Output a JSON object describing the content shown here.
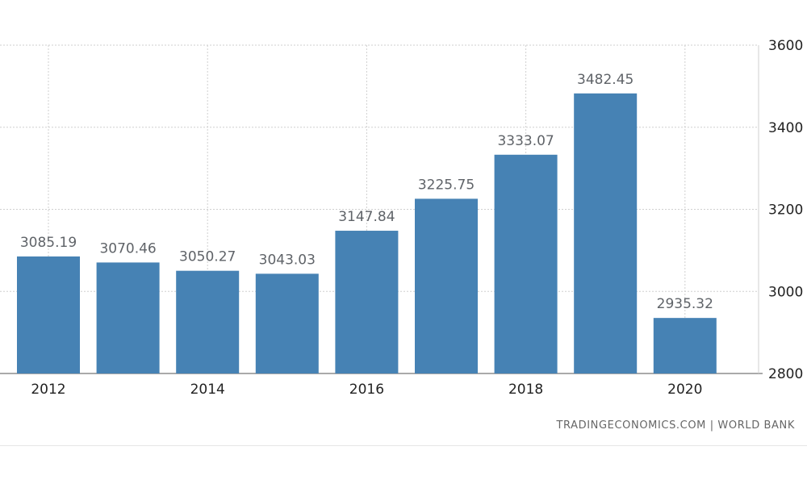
{
  "chart_data": {
    "type": "bar",
    "categories": [
      "2012",
      "2013",
      "2014",
      "2015",
      "2016",
      "2017",
      "2018",
      "2019",
      "2020"
    ],
    "values": [
      3085.19,
      3070.46,
      3050.27,
      3043.03,
      3147.84,
      3225.75,
      3333.07,
      3482.45,
      2935.32
    ],
    "value_labels": [
      "3085.19",
      "3070.46",
      "3050.27",
      "3043.03",
      "3147.84",
      "3225.75",
      "3333.07",
      "3482.45",
      "2935.32"
    ],
    "x_tick_labels": [
      "2012",
      "2014",
      "2016",
      "2018",
      "2020"
    ],
    "y_ticks": [
      2800,
      3000,
      3200,
      3400,
      3600
    ],
    "ylim": [
      2800,
      3600
    ],
    "y_axis_side": "right",
    "grid": true,
    "bar_color": "#4682b4",
    "title": "",
    "xlabel": "",
    "ylabel": ""
  },
  "source": "TRADINGECONOMICS.COM | WORLD BANK"
}
